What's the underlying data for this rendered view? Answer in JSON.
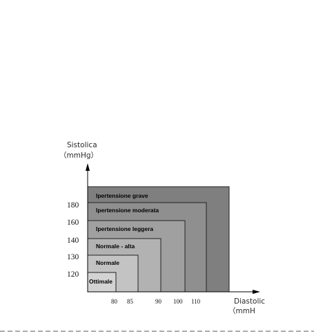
{
  "y_axis": {
    "title": "Sistolica",
    "unit": "（mmHg）"
  },
  "x_axis": {
    "title": "Diastolic",
    "unit": "（mmH"
  },
  "y_ticks": [
    "180",
    "160",
    "140",
    "130",
    "120"
  ],
  "x_ticks": [
    "80",
    "85",
    "90",
    "100",
    "110"
  ],
  "zones": [
    {
      "label": "Ipertensione grave",
      "fill": "#7f7f7f"
    },
    {
      "label": "Ipertensione moderata",
      "fill": "#8f8f8f"
    },
    {
      "label": "Ipertensione leggera",
      "fill": "#a0a0a0"
    },
    {
      "label": "Normale - alta",
      "fill": "#b2b2b2"
    },
    {
      "label": "Normale",
      "fill": "#c3c3c3"
    },
    {
      "label": "Ottimale",
      "fill": "#d3d3d3"
    }
  ],
  "colors": {
    "axis": "#000000",
    "outline": "#111111",
    "dashes": "#555555"
  }
}
